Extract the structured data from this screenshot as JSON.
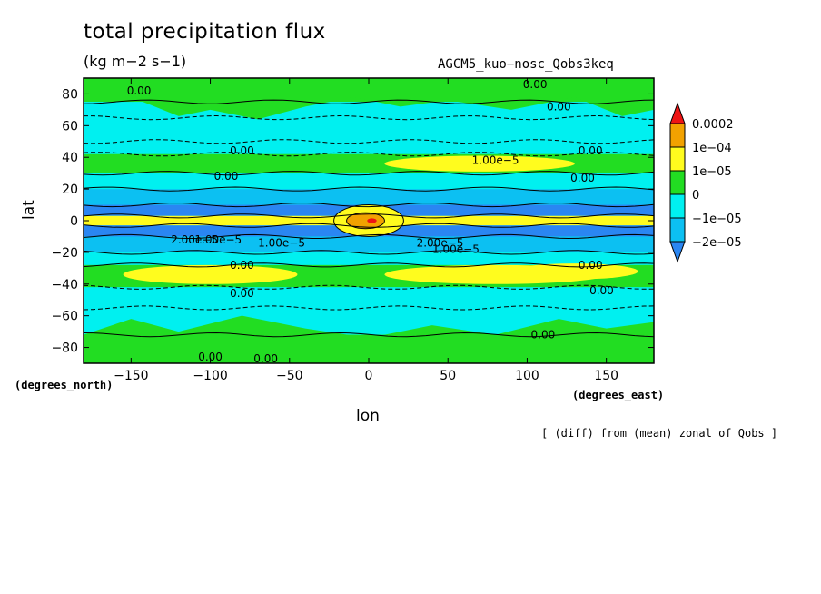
{
  "title": "total precipitation flux",
  "units": "(kg m−2 s−1)",
  "run_name": "AGCM5_kuo−nosc_Qobs3keq",
  "axis": {
    "x_label": "lon",
    "y_label": "lat",
    "x_unit": "(degrees_east)",
    "y_unit": "(degrees_north)"
  },
  "footnote": "[ (diff) from (mean) zonal of Qobs ]",
  "colors": {
    "level_lt_m2e5": "#2a86f2",
    "level_m2e5_m1e5": "#0cc0f2",
    "level_m1e5_0": "#00f0f0",
    "level_0_1e5": "#22dd22",
    "level_1e5_1e4": "#fffc1e",
    "level_1e4_2e4": "#f2a200",
    "level_gt_2e4": "#ee1414"
  },
  "chart_data": {
    "type": "heatmap",
    "title": "total precipitation flux",
    "subtitle": "(kg m−2 s−1)",
    "xlabel": "lon",
    "ylabel": "lat",
    "xlim": [
      -180,
      180
    ],
    "ylim": [
      -90,
      90
    ],
    "x_ticks": [
      -150,
      -100,
      -50,
      0,
      50,
      100,
      150
    ],
    "y_ticks": [
      -80,
      -60,
      -40,
      -20,
      0,
      20,
      40,
      60,
      80
    ],
    "colorbar": {
      "labels": [
        "0.0002",
        "1e−04",
        "1e−05",
        "0",
        "−1e−05",
        "−2e−05"
      ],
      "levels": [
        -2e-05,
        -1e-05,
        0,
        1e-05,
        0.0001,
        0.0002
      ]
    },
    "latitude_bands": [
      {
        "lat": [
          75,
          90
        ],
        "level": 0
      },
      {
        "lat": [
          65,
          75
        ],
        "level": -1
      },
      {
        "lat": [
          50,
          65
        ],
        "level": -1
      },
      {
        "lat": [
          42,
          50
        ],
        "level": -1
      },
      {
        "lat": [
          30,
          42
        ],
        "level": 0
      },
      {
        "lat": [
          20,
          30
        ],
        "level": -1
      },
      {
        "lat": [
          10,
          20
        ],
        "level": -2
      },
      {
        "lat": [
          3,
          10
        ],
        "level": -3
      },
      {
        "lat": [
          -3,
          3
        ],
        "level": 1
      },
      {
        "lat": [
          -10,
          -3
        ],
        "level": -3
      },
      {
        "lat": [
          -20,
          -10
        ],
        "level": -2
      },
      {
        "lat": [
          -28,
          -20
        ],
        "level": -1
      },
      {
        "lat": [
          -42,
          -28
        ],
        "level": 0
      },
      {
        "lat": [
          -55,
          -42
        ],
        "level": -1
      },
      {
        "lat": [
          -72,
          -55
        ],
        "level": -1
      },
      {
        "lat": [
          -90,
          -72
        ],
        "level": 0
      }
    ],
    "contour_labels": [
      "0.00",
      "0.00",
      "0.00",
      "0.00",
      "0.00",
      "0.00",
      "0.00",
      "1.00e−5",
      "1.00e−5",
      "2.00e−5",
      "1.00e−5",
      "2.00e−5",
      "1.00e−5",
      "0.00",
      "0.00",
      "0.00",
      "0.00",
      "0.00",
      "0.00",
      "0.00"
    ]
  }
}
